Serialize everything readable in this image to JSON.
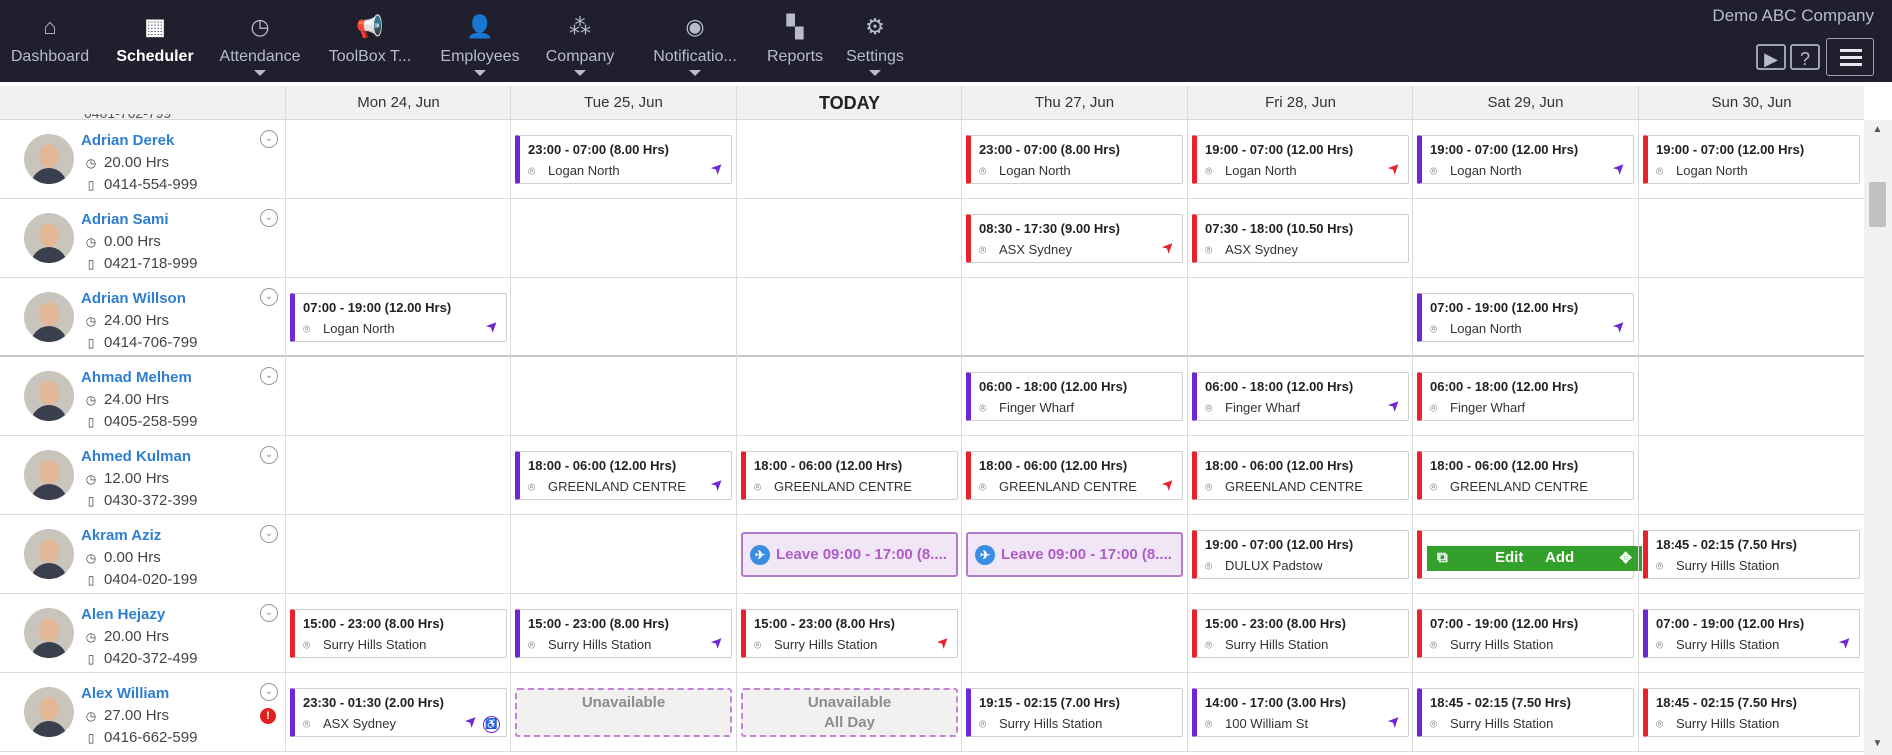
{
  "company": "Demo ABC Company",
  "nav": [
    {
      "label": "Dashboard",
      "icon": "home-icon",
      "glyph": "⌂",
      "caret": false
    },
    {
      "label": "Scheduler",
      "icon": "calendar-icon",
      "glyph": "▦",
      "caret": false,
      "active": true
    },
    {
      "label": "Attendance",
      "icon": "clock-icon",
      "glyph": "◷",
      "caret": true
    },
    {
      "label": "ToolBox T...",
      "icon": "megaphone-icon",
      "glyph": "📢",
      "caret": false
    },
    {
      "label": "Employees",
      "icon": "person-icon",
      "glyph": "👤",
      "caret": true
    },
    {
      "label": "Company",
      "icon": "group-icon",
      "glyph": "⁂",
      "caret": true
    },
    {
      "label": "Notificatio...",
      "icon": "rss-icon",
      "glyph": "◉",
      "caret": true
    },
    {
      "label": "Reports",
      "icon": "grid-icon",
      "glyph": "▚",
      "caret": false
    },
    {
      "label": "Settings",
      "icon": "gear-icon",
      "glyph": "⚙",
      "caret": true
    }
  ],
  "days": [
    "Mon 24, Jun",
    "Tue 25, Jun",
    "TODAY",
    "Thu 27, Jun",
    "Fri 28, Jun",
    "Sat 29, Jun",
    "Sun 30, Jun"
  ],
  "cut_off_phone": "0401-762-799",
  "employees": [
    {
      "name": "Adrian Derek",
      "hours": "20.00 Hrs",
      "phone": "0414-554-999"
    },
    {
      "name": "Adrian Sami",
      "hours": "0.00 Hrs",
      "phone": "0421-718-999"
    },
    {
      "name": "Adrian Willson",
      "hours": "24.00 Hrs",
      "phone": "0414-706-799"
    },
    {
      "name": "Ahmad Melhem",
      "hours": "24.00 Hrs",
      "phone": "0405-258-599"
    },
    {
      "name": "Ahmed Kulman",
      "hours": "12.00 Hrs",
      "phone": "0430-372-399"
    },
    {
      "name": "Akram Aziz",
      "hours": "0.00 Hrs",
      "phone": "0404-020-199"
    },
    {
      "name": "Alen Hejazy",
      "hours": "20.00 Hrs",
      "phone": "0420-372-499"
    },
    {
      "name": "Alex William",
      "hours": "27.00 Hrs",
      "phone": "0416-662-599"
    }
  ],
  "hover_bar": {
    "edit": "Edit",
    "add": "Add"
  },
  "shifts": [
    [
      null,
      {
        "time": "23:00 - 07:00 (8.00 Hrs)",
        "loc": "Logan North",
        "color": "purple",
        "arrow": "purple"
      },
      null,
      {
        "time": "23:00 - 07:00 (8.00 Hrs)",
        "loc": "Logan North",
        "color": "red"
      },
      {
        "time": "19:00 - 07:00 (12.00 Hrs)",
        "loc": "Logan North",
        "color": "red",
        "arrow": "red"
      },
      {
        "time": "19:00 - 07:00 (12.00 Hrs)",
        "loc": "Logan North",
        "color": "purple",
        "arrow": "purple"
      },
      {
        "time": "19:00 - 07:00 (12.00 Hrs)",
        "loc": "Logan North",
        "color": "red"
      }
    ],
    [
      null,
      null,
      null,
      {
        "time": "08:30 - 17:30 (9.00 Hrs)",
        "loc": "ASX Sydney",
        "color": "red",
        "arrow": "red"
      },
      {
        "time": "07:30 - 18:00 (10.50 Hrs)",
        "loc": "ASX Sydney",
        "color": "red"
      },
      null,
      null
    ],
    [
      {
        "time": "07:00 - 19:00 (12.00 Hrs)",
        "loc": "Logan North",
        "color": "purple",
        "arrow": "purple"
      },
      null,
      null,
      null,
      null,
      {
        "time": "07:00 - 19:00 (12.00 Hrs)",
        "loc": "Logan North",
        "color": "purple",
        "arrow": "purple"
      },
      null
    ],
    [
      null,
      null,
      null,
      {
        "time": "06:00 - 18:00 (12.00 Hrs)",
        "loc": "Finger Wharf",
        "color": "purple"
      },
      {
        "time": "06:00 - 18:00 (12.00 Hrs)",
        "loc": "Finger Wharf",
        "color": "purple",
        "arrow": "purple"
      },
      {
        "time": "06:00 - 18:00 (12.00 Hrs)",
        "loc": "Finger Wharf",
        "color": "red"
      },
      null
    ],
    [
      null,
      {
        "time": "18:00 - 06:00 (12.00 Hrs)",
        "loc": "GREENLAND CENTRE",
        "color": "purple",
        "arrow": "purple"
      },
      {
        "time": "18:00 - 06:00 (12.00 Hrs)",
        "loc": "GREENLAND CENTRE",
        "color": "red"
      },
      {
        "time": "18:00 - 06:00 (12.00 Hrs)",
        "loc": "GREENLAND CENTRE",
        "color": "red",
        "arrow": "red"
      },
      {
        "time": "18:00 - 06:00 (12.00 Hrs)",
        "loc": "GREENLAND CENTRE",
        "color": "red"
      },
      {
        "time": "18:00 - 06:00 (12.00 Hrs)",
        "loc": "GREENLAND CENTRE",
        "color": "red"
      },
      null
    ],
    [
      null,
      null,
      {
        "leave": "Leave 09:00 - 17:00 (8...."
      },
      {
        "leave": "Leave 09:00 - 17:00 (8...."
      },
      {
        "time": "19:00 - 07:00 (12.00 Hrs)",
        "loc": "DULUX Padstow",
        "color": "red"
      },
      {
        "time": "",
        "loc": "DULUX Padstow",
        "color": "red",
        "arrow": "red",
        "hover": true
      },
      {
        "time": "18:45 - 02:15 (7.50 Hrs)",
        "loc": "Surry Hills Station",
        "color": "red"
      }
    ],
    [
      {
        "time": "15:00 - 23:00 (8.00 Hrs)",
        "loc": "Surry Hills Station",
        "color": "red"
      },
      {
        "time": "15:00 - 23:00 (8.00 Hrs)",
        "loc": "Surry Hills Station",
        "color": "purple",
        "arrow": "purple"
      },
      {
        "time": "15:00 - 23:00 (8.00 Hrs)",
        "loc": "Surry Hills Station",
        "color": "red",
        "arrow": "red"
      },
      null,
      {
        "time": "15:00 - 23:00 (8.00 Hrs)",
        "loc": "Surry Hills Station",
        "color": "red"
      },
      {
        "time": "07:00 - 19:00 (12.00 Hrs)",
        "loc": "Surry Hills Station",
        "color": "red"
      },
      {
        "time": "07:00 - 19:00 (12.00 Hrs)",
        "loc": "Surry Hills Station",
        "color": "purple",
        "arrow": "purple"
      }
    ],
    [
      {
        "time": "23:30 - 01:30 (2.00 Hrs)",
        "loc": "ASX Sydney",
        "color": "purple",
        "arrow": "purple",
        "access": true
      },
      {
        "unavail": "Unavailable"
      },
      {
        "unavail": "Unavailable",
        "sub": "All Day"
      },
      {
        "time": "19:15 - 02:15 (7.00 Hrs)",
        "loc": "Surry Hills Station",
        "color": "purple"
      },
      {
        "time": "14:00 - 17:00 (3.00 Hrs)",
        "loc": "100 William St",
        "color": "purple",
        "arrow": "purple"
      },
      {
        "time": "18:45 - 02:15 (7.50 Hrs)",
        "loc": "Surry Hills Station",
        "color": "purple"
      },
      {
        "time": "18:45 - 02:15 (7.50 Hrs)",
        "loc": "Surry Hills Station",
        "color": "red"
      }
    ]
  ]
}
